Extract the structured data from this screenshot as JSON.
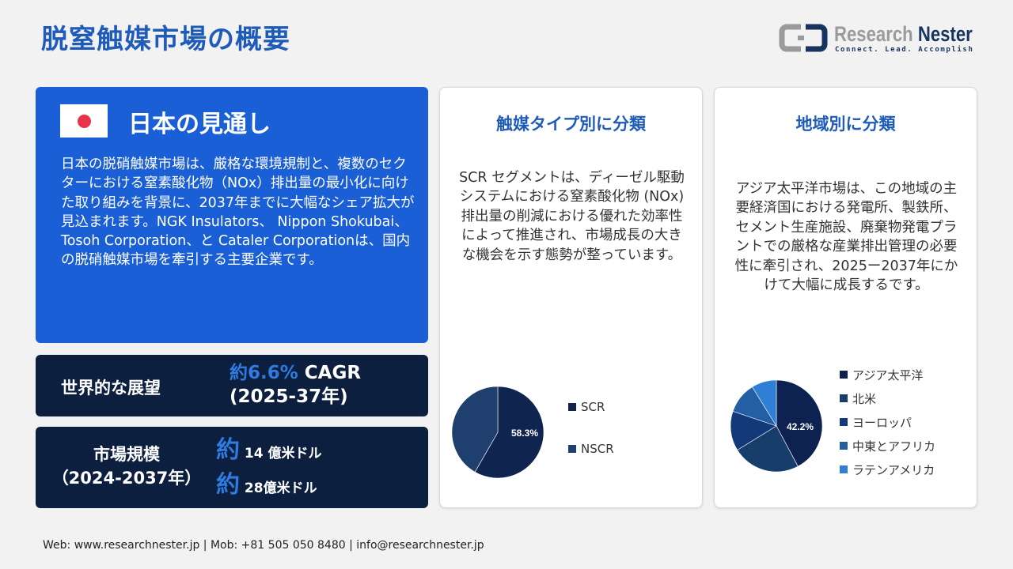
{
  "title": "脱窒触媒市場の概要",
  "logo": {
    "name_a": "Research",
    "name_b": "Nester",
    "tagline": "Connect. Lead. Accomplish"
  },
  "japan": {
    "title": "日本の見通し",
    "text": "日本の脱硝触媒市場は、厳格な環境規制と、複数のセクターにおける窒素酸化物（NOx）排出量の最小化に向けた取り組みを背景に、2037年までに大幅なシェア拡大が見込まれます。NGK Insulators、 Nippon Shokubai、 Tosoh Corporation、と Cataler Corporationは、国内の脱硝触媒市場を牽引する主要企業です。",
    "flag_color": "#e8344a"
  },
  "outlook": {
    "label": "世界的な展望",
    "approx": "約",
    "cagr": "6.6%",
    "cagr_suffix": " CAGR",
    "period": "(2025-37年)"
  },
  "market": {
    "label": "市場規模",
    "period": "（2024-2037年）",
    "approx": "約",
    "v1": "14 億米ドル",
    "v2": "28億米ドル"
  },
  "accent": "#2f7be0",
  "card1": {
    "title": "触媒タイプ別に分類",
    "text": "SCR セグメントは、ディーゼル駆動システムにおける窒素酸化物 (NOx) 排出量の削減における優れた効率性によって推進され、市場成長の大きな機会を示す態勢が整っています。"
  },
  "card2": {
    "title": "地域別に分類",
    "text": "アジア太平洋市場は、この地域の主要経済国における発電所、製鉄所、セメント生産施設、廃棄物発電プラントでの厳格な産業排出管理の必要性に牽引され、2025ー2037年にかけて大幅に成長するです。"
  },
  "chart_data": [
    {
      "type": "pie",
      "categories": [
        "SCR",
        "NSCR"
      ],
      "values": [
        58.3,
        41.7
      ],
      "data_labels": [
        "58.3%",
        ""
      ],
      "colors": [
        "#0f2550",
        "#1f3f6e"
      ],
      "legend": "right"
    },
    {
      "type": "pie",
      "categories": [
        "アジア太平洋",
        "北米",
        "ヨーロッパ",
        "中東とアフリカ",
        "ラテンアメリカ"
      ],
      "values": [
        42.2,
        24,
        14,
        11,
        8.8
      ],
      "data_labels": [
        "42.2%",
        "",
        "",
        "",
        ""
      ],
      "colors": [
        "#0d2250",
        "#173d6b",
        "#123a78",
        "#245fa3",
        "#2f7fd6"
      ],
      "legend": "right"
    }
  ],
  "footer": "Web: www.researchnester.jp  | Mob: +81 505 050 8480 | info@researchnester.jp"
}
